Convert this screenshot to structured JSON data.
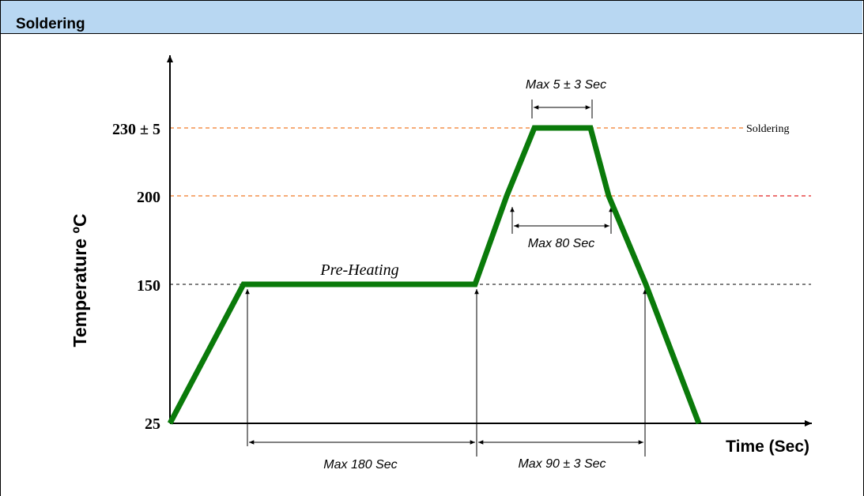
{
  "header": {
    "title": "Soldering"
  },
  "colors": {
    "profile": "#0a7a0a",
    "soldering_line": "#f07a28",
    "level_200_line": "#f07a28",
    "level_200_line_end": "#e02020",
    "level_150_line": "#000000",
    "axis": "#000000"
  },
  "chart_data": {
    "type": "line",
    "title": "",
    "ylabel": "Temperature ºC",
    "xlabel": "Time (Sec)",
    "y_ticks": [
      {
        "value": 230,
        "label": "230 ± 5"
      },
      {
        "value": 200,
        "label": "200"
      },
      {
        "value": 150,
        "label": "150"
      },
      {
        "value": 25,
        "label": "25"
      }
    ],
    "reference_lines": [
      {
        "value": 230,
        "label": "Soldering"
      },
      {
        "value": 200,
        "label": ""
      },
      {
        "value": 150,
        "label": ""
      }
    ],
    "series": [
      {
        "x": [
          0,
          60,
          240,
          280,
          285,
          320,
          325,
          360,
          400
        ],
        "y": [
          25,
          150,
          150,
          200,
          230,
          230,
          200,
          150,
          25
        ]
      }
    ],
    "annotations": {
      "pre_heating": "Pre-Heating",
      "max_180": "Max  180 Sec",
      "max_90": "Max 90 ± 3 Sec",
      "max_80": "Max 80 Sec",
      "max_5": "Max 5 ± 3 Sec"
    }
  }
}
